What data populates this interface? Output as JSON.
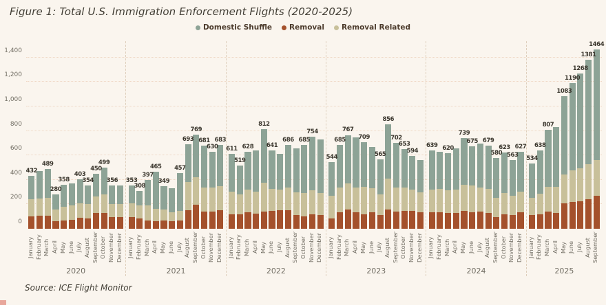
{
  "title": "Figure 1: Total U.S. Immigration Enforcement Flights (2020-2025)",
  "source": "Source: ICE Flight Monitor",
  "legend": [
    {
      "label": "Domestic Shuffle",
      "color": "#8DA396"
    },
    {
      "label": "Removal",
      "color": "#A4512C"
    },
    {
      "label": "Removal Related",
      "color": "#C8C09A"
    }
  ],
  "colors": {
    "background": "#FAF5EE",
    "domestic_shuffle": "#8DA396",
    "removal": "#A4512C",
    "removal_related": "#C8C09A",
    "gridline": "#EFD8C5",
    "axis_text": "#726E64",
    "value_text": "#3A362D",
    "year_separator": "#DECFBC"
  },
  "chart_data": {
    "type": "bar",
    "stacked": true,
    "title": "Figure 1: Total U.S. Immigration Enforcement Flights (2020-2025)",
    "xlabel": "",
    "ylabel": "",
    "ylim": [
      0,
      1500
    ],
    "grid": "horizontal-dotted",
    "legend_position": "top-center",
    "yticks": [
      {
        "value": 0,
        "label": "0"
      },
      {
        "value": 200,
        "label": "200"
      },
      {
        "value": 400,
        "label": "400"
      },
      {
        "value": 600,
        "label": "600"
      },
      {
        "value": 800,
        "label": "800"
      },
      {
        "value": 1000,
        "label": "1,000"
      },
      {
        "value": 1200,
        "label": "1,200"
      },
      {
        "value": 1400,
        "label": "1,400"
      }
    ],
    "series_order_bottom_to_top": [
      "Removal",
      "Removal Related",
      "Domestic Shuffle"
    ],
    "note": "totals for unlabeled bars and all per-segment splits are estimated from bar pixel heights",
    "years": [
      {
        "year": "2020",
        "months": [
          {
            "month": "January",
            "total": 432,
            "labeled": true,
            "removal": 100,
            "related": 140,
            "shuffle": 192
          },
          {
            "month": "February",
            "total": 470,
            "labeled": false,
            "removal": 105,
            "related": 145,
            "shuffle": 220
          },
          {
            "month": "March",
            "total": 489,
            "labeled": true,
            "removal": 105,
            "related": 150,
            "shuffle": 234
          },
          {
            "month": "April",
            "total": 280,
            "labeled": true,
            "removal": 60,
            "related": 100,
            "shuffle": 120
          },
          {
            "month": "May",
            "total": 358,
            "labeled": true,
            "removal": 70,
            "related": 110,
            "shuffle": 178
          },
          {
            "month": "June",
            "total": 370,
            "labeled": false,
            "removal": 75,
            "related": 115,
            "shuffle": 180
          },
          {
            "month": "July",
            "total": 403,
            "labeled": true,
            "removal": 90,
            "related": 120,
            "shuffle": 193
          },
          {
            "month": "August",
            "total": 354,
            "labeled": true,
            "removal": 85,
            "related": 115,
            "shuffle": 154
          },
          {
            "month": "September",
            "total": 450,
            "labeled": true,
            "removal": 130,
            "related": 135,
            "shuffle": 185
          },
          {
            "month": "October",
            "total": 499,
            "labeled": true,
            "removal": 130,
            "related": 150,
            "shuffle": 219
          },
          {
            "month": "November",
            "total": 356,
            "labeled": true,
            "removal": 95,
            "related": 110,
            "shuffle": 151
          },
          {
            "month": "December",
            "total": 352,
            "labeled": false,
            "removal": 95,
            "related": 110,
            "shuffle": 147
          }
        ]
      },
      {
        "year": "2021",
        "months": [
          {
            "month": "January",
            "total": 353,
            "labeled": true,
            "removal": 95,
            "related": 115,
            "shuffle": 143
          },
          {
            "month": "February",
            "total": 308,
            "labeled": true,
            "removal": 85,
            "related": 105,
            "shuffle": 118
          },
          {
            "month": "March",
            "total": 397,
            "labeled": true,
            "removal": 70,
            "related": 120,
            "shuffle": 207
          },
          {
            "month": "April",
            "total": 465,
            "labeled": true,
            "removal": 60,
            "related": 105,
            "shuffle": 300
          },
          {
            "month": "May",
            "total": 349,
            "labeled": true,
            "removal": 65,
            "related": 90,
            "shuffle": 194
          },
          {
            "month": "June",
            "total": 330,
            "labeled": false,
            "removal": 60,
            "related": 75,
            "shuffle": 195
          },
          {
            "month": "July",
            "total": 457,
            "labeled": true,
            "removal": 65,
            "related": 80,
            "shuffle": 312
          },
          {
            "month": "August",
            "total": 693,
            "labeled": true,
            "removal": 150,
            "related": 230,
            "shuffle": 313
          },
          {
            "month": "September",
            "total": 769,
            "labeled": true,
            "removal": 195,
            "related": 225,
            "shuffle": 349
          },
          {
            "month": "October",
            "total": 681,
            "labeled": true,
            "removal": 140,
            "related": 200,
            "shuffle": 341
          },
          {
            "month": "November",
            "total": 630,
            "labeled": true,
            "removal": 140,
            "related": 195,
            "shuffle": 295
          },
          {
            "month": "December",
            "total": 683,
            "labeled": true,
            "removal": 150,
            "related": 200,
            "shuffle": 333
          }
        ]
      },
      {
        "year": "2022",
        "months": [
          {
            "month": "January",
            "total": 611,
            "labeled": true,
            "removal": 120,
            "related": 185,
            "shuffle": 306
          },
          {
            "month": "February",
            "total": 519,
            "labeled": true,
            "removal": 120,
            "related": 160,
            "shuffle": 239
          },
          {
            "month": "March",
            "total": 628,
            "labeled": true,
            "removal": 135,
            "related": 185,
            "shuffle": 308
          },
          {
            "month": "April",
            "total": 640,
            "labeled": false,
            "removal": 125,
            "related": 180,
            "shuffle": 335
          },
          {
            "month": "May",
            "total": 812,
            "labeled": true,
            "removal": 140,
            "related": 235,
            "shuffle": 437
          },
          {
            "month": "June",
            "total": 641,
            "labeled": true,
            "removal": 145,
            "related": 180,
            "shuffle": 316
          },
          {
            "month": "July",
            "total": 610,
            "labeled": false,
            "removal": 150,
            "related": 170,
            "shuffle": 290
          },
          {
            "month": "August",
            "total": 686,
            "labeled": true,
            "removal": 150,
            "related": 185,
            "shuffle": 351
          },
          {
            "month": "September",
            "total": 655,
            "labeled": false,
            "removal": 115,
            "related": 185,
            "shuffle": 355
          },
          {
            "month": "October",
            "total": 685,
            "labeled": true,
            "removal": 100,
            "related": 190,
            "shuffle": 395
          },
          {
            "month": "November",
            "total": 754,
            "labeled": true,
            "removal": 120,
            "related": 195,
            "shuffle": 439
          },
          {
            "month": "December",
            "total": 730,
            "labeled": false,
            "removal": 110,
            "related": 185,
            "shuffle": 435
          }
        ]
      },
      {
        "year": "2023",
        "months": [
          {
            "month": "January",
            "total": 544,
            "labeled": true,
            "removal": 85,
            "related": 185,
            "shuffle": 274
          },
          {
            "month": "February",
            "total": 685,
            "labeled": true,
            "removal": 135,
            "related": 200,
            "shuffle": 350
          },
          {
            "month": "March",
            "total": 767,
            "labeled": true,
            "removal": 155,
            "related": 215,
            "shuffle": 397
          },
          {
            "month": "April",
            "total": 745,
            "labeled": false,
            "removal": 135,
            "related": 205,
            "shuffle": 405
          },
          {
            "month": "May",
            "total": 709,
            "labeled": true,
            "removal": 120,
            "related": 220,
            "shuffle": 369
          },
          {
            "month": "June",
            "total": 670,
            "labeled": false,
            "removal": 135,
            "related": 195,
            "shuffle": 340
          },
          {
            "month": "July",
            "total": 565,
            "labeled": true,
            "removal": 115,
            "related": 165,
            "shuffle": 285
          },
          {
            "month": "August",
            "total": 856,
            "labeled": true,
            "removal": 160,
            "related": 250,
            "shuffle": 446
          },
          {
            "month": "September",
            "total": 702,
            "labeled": true,
            "removal": 140,
            "related": 200,
            "shuffle": 362
          },
          {
            "month": "October",
            "total": 653,
            "labeled": true,
            "removal": 145,
            "related": 190,
            "shuffle": 318
          },
          {
            "month": "November",
            "total": 594,
            "labeled": true,
            "removal": 145,
            "related": 175,
            "shuffle": 274
          },
          {
            "month": "December",
            "total": 560,
            "labeled": false,
            "removal": 135,
            "related": 165,
            "shuffle": 260
          }
        ]
      },
      {
        "year": "2024",
        "months": [
          {
            "month": "January",
            "total": 639,
            "labeled": true,
            "removal": 135,
            "related": 185,
            "shuffle": 319
          },
          {
            "month": "February",
            "total": 630,
            "labeled": false,
            "removal": 135,
            "related": 190,
            "shuffle": 305
          },
          {
            "month": "March",
            "total": 620,
            "labeled": true,
            "removal": 130,
            "related": 185,
            "shuffle": 305
          },
          {
            "month": "April",
            "total": 655,
            "labeled": false,
            "removal": 130,
            "related": 190,
            "shuffle": 335
          },
          {
            "month": "May",
            "total": 739,
            "labeled": true,
            "removal": 145,
            "related": 215,
            "shuffle": 379
          },
          {
            "month": "June",
            "total": 675,
            "labeled": true,
            "removal": 135,
            "related": 220,
            "shuffle": 320
          },
          {
            "month": "July",
            "total": 695,
            "labeled": false,
            "removal": 140,
            "related": 195,
            "shuffle": 360
          },
          {
            "month": "August",
            "total": 679,
            "labeled": true,
            "removal": 130,
            "related": 195,
            "shuffle": 354
          },
          {
            "month": "September",
            "total": 580,
            "labeled": true,
            "removal": 95,
            "related": 160,
            "shuffle": 325
          },
          {
            "month": "October",
            "total": 623,
            "labeled": true,
            "removal": 120,
            "related": 175,
            "shuffle": 328
          },
          {
            "month": "November",
            "total": 563,
            "labeled": true,
            "removal": 110,
            "related": 160,
            "shuffle": 293
          },
          {
            "month": "December",
            "total": 627,
            "labeled": true,
            "removal": 135,
            "related": 170,
            "shuffle": 322
          }
        ]
      },
      {
        "year": "2025",
        "months": [
          {
            "month": "January",
            "total": 534,
            "labeled": true,
            "removal": 110,
            "related": 145,
            "shuffle": 279
          },
          {
            "month": "February",
            "total": 638,
            "labeled": true,
            "removal": 120,
            "related": 165,
            "shuffle": 353
          },
          {
            "month": "March",
            "total": 807,
            "labeled": true,
            "removal": 140,
            "related": 205,
            "shuffle": 462
          },
          {
            "month": "April",
            "total": 830,
            "labeled": false,
            "removal": 130,
            "related": 215,
            "shuffle": 485
          },
          {
            "month": "May",
            "total": 1083,
            "labeled": true,
            "removal": 210,
            "related": 235,
            "shuffle": 638
          },
          {
            "month": "June",
            "total": 1190,
            "labeled": true,
            "removal": 220,
            "related": 255,
            "shuffle": 715
          },
          {
            "month": "July",
            "total": 1268,
            "labeled": true,
            "removal": 225,
            "related": 270,
            "shuffle": 773
          },
          {
            "month": "August",
            "total": 1381,
            "labeled": true,
            "removal": 240,
            "related": 290,
            "shuffle": 851
          },
          {
            "month": "September",
            "total": 1464,
            "labeled": true,
            "removal": 270,
            "related": 290,
            "shuffle": 904
          }
        ]
      }
    ]
  }
}
